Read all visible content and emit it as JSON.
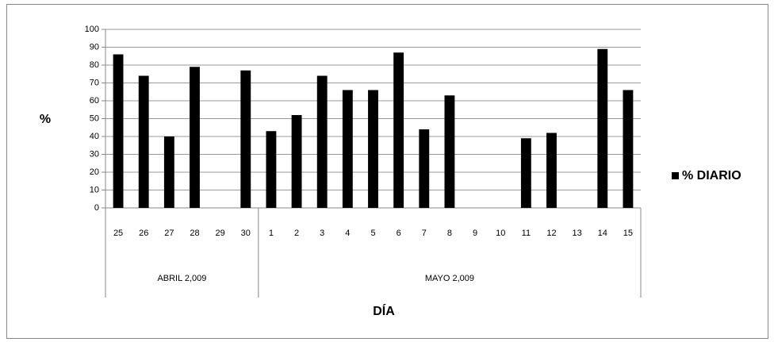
{
  "chart_data": {
    "type": "bar",
    "y_label": "%",
    "x_label": "DÍA",
    "categories": [
      "25",
      "26",
      "27",
      "28",
      "29",
      "30",
      "1",
      "2",
      "3",
      "4",
      "5",
      "6",
      "7",
      "8",
      "9",
      "10",
      "11",
      "12",
      "13",
      "14",
      "15"
    ],
    "groups": [
      {
        "name": "ABRIL 2,009",
        "size": 6
      },
      {
        "name": "MAYO 2,009",
        "size": 15
      }
    ],
    "series": [
      {
        "name": "% DIARIO",
        "color": "#000000",
        "values": [
          86,
          74,
          40,
          79,
          null,
          77,
          43,
          52,
          74,
          66,
          66,
          87,
          44,
          63,
          null,
          null,
          39,
          42,
          null,
          89,
          66
        ]
      }
    ],
    "ylim": [
      0,
      100
    ],
    "yticks": [
      0,
      10,
      20,
      30,
      40,
      50,
      60,
      70,
      80,
      90,
      100
    ],
    "grid": true,
    "legend": "right"
  }
}
